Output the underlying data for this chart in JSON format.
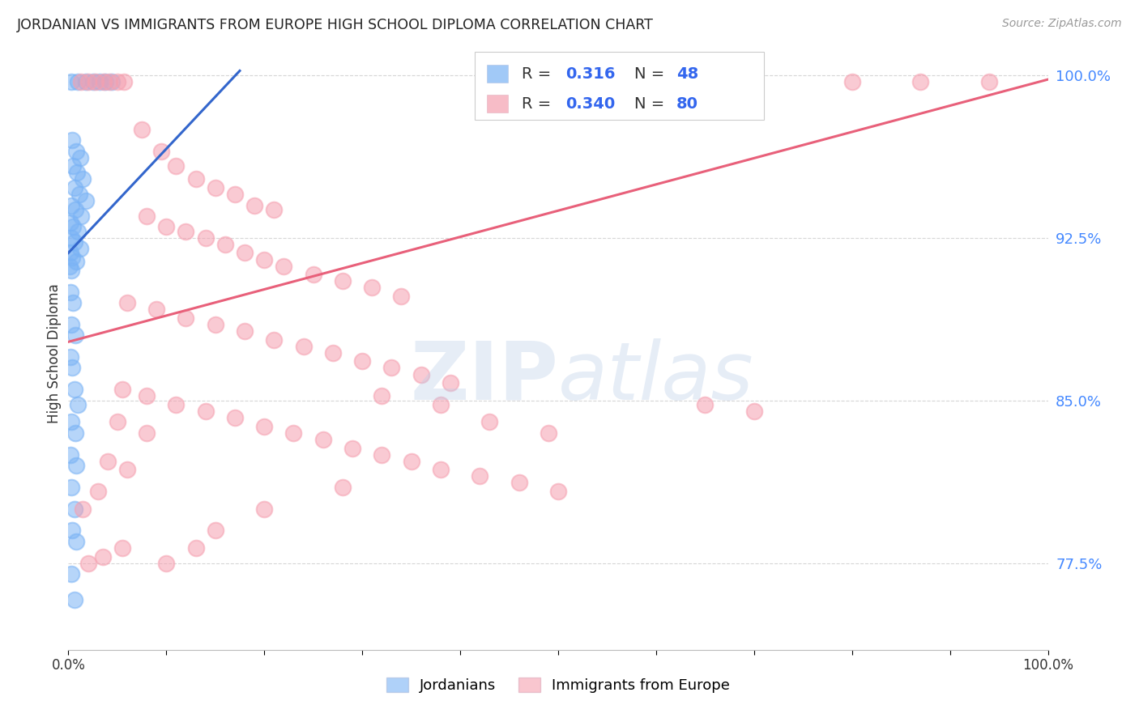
{
  "title": "JORDANIAN VS IMMIGRANTS FROM EUROPE HIGH SCHOOL DIPLOMA CORRELATION CHART",
  "source": "Source: ZipAtlas.com",
  "ylabel": "High School Diploma",
  "xlim": [
    0,
    1
  ],
  "ylim": [
    0.735,
    1.008
  ],
  "yticks": [
    0.775,
    0.85,
    0.925,
    1.0
  ],
  "ytick_labels": [
    "77.5%",
    "85.0%",
    "92.5%",
    "100.0%"
  ],
  "background_color": "#ffffff",
  "grid_color": "#cccccc",
  "jordanian_color": "#7ab3f5",
  "europe_color": "#f5a0b0",
  "jordanian_line_color": "#3366cc",
  "europe_line_color": "#e8607a",
  "watermark": "ZIPatlas",
  "jordanian_line": [
    [
      0.0,
      0.918
    ],
    [
      0.175,
      1.002
    ]
  ],
  "europe_line": [
    [
      0.0,
      0.877
    ],
    [
      1.0,
      0.998
    ]
  ],
  "jordanian_points": [
    [
      0.003,
      0.997
    ],
    [
      0.01,
      0.997
    ],
    [
      0.018,
      0.997
    ],
    [
      0.025,
      0.997
    ],
    [
      0.032,
      0.997
    ],
    [
      0.038,
      0.997
    ],
    [
      0.044,
      0.997
    ],
    [
      0.004,
      0.97
    ],
    [
      0.008,
      0.965
    ],
    [
      0.012,
      0.962
    ],
    [
      0.005,
      0.958
    ],
    [
      0.009,
      0.955
    ],
    [
      0.015,
      0.952
    ],
    [
      0.006,
      0.948
    ],
    [
      0.011,
      0.945
    ],
    [
      0.018,
      0.942
    ],
    [
      0.003,
      0.94
    ],
    [
      0.007,
      0.938
    ],
    [
      0.013,
      0.935
    ],
    [
      0.002,
      0.932
    ],
    [
      0.005,
      0.93
    ],
    [
      0.01,
      0.928
    ],
    [
      0.003,
      0.925
    ],
    [
      0.006,
      0.923
    ],
    [
      0.012,
      0.92
    ],
    [
      0.002,
      0.918
    ],
    [
      0.004,
      0.916
    ],
    [
      0.008,
      0.914
    ],
    [
      0.001,
      0.912
    ],
    [
      0.003,
      0.91
    ],
    [
      0.002,
      0.9
    ],
    [
      0.005,
      0.895
    ],
    [
      0.003,
      0.885
    ],
    [
      0.007,
      0.88
    ],
    [
      0.002,
      0.87
    ],
    [
      0.004,
      0.865
    ],
    [
      0.006,
      0.855
    ],
    [
      0.01,
      0.848
    ],
    [
      0.003,
      0.84
    ],
    [
      0.007,
      0.835
    ],
    [
      0.002,
      0.825
    ],
    [
      0.008,
      0.82
    ],
    [
      0.003,
      0.81
    ],
    [
      0.006,
      0.8
    ],
    [
      0.004,
      0.79
    ],
    [
      0.008,
      0.785
    ],
    [
      0.003,
      0.77
    ],
    [
      0.006,
      0.758
    ]
  ],
  "europe_points": [
    [
      0.013,
      0.997
    ],
    [
      0.02,
      0.997
    ],
    [
      0.028,
      0.997
    ],
    [
      0.036,
      0.997
    ],
    [
      0.042,
      0.997
    ],
    [
      0.05,
      0.997
    ],
    [
      0.057,
      0.997
    ],
    [
      0.8,
      0.997
    ],
    [
      0.87,
      0.997
    ],
    [
      0.94,
      0.997
    ],
    [
      0.075,
      0.975
    ],
    [
      0.095,
      0.965
    ],
    [
      0.11,
      0.958
    ],
    [
      0.13,
      0.952
    ],
    [
      0.15,
      0.948
    ],
    [
      0.17,
      0.945
    ],
    [
      0.19,
      0.94
    ],
    [
      0.21,
      0.938
    ],
    [
      0.08,
      0.935
    ],
    [
      0.1,
      0.93
    ],
    [
      0.12,
      0.928
    ],
    [
      0.14,
      0.925
    ],
    [
      0.16,
      0.922
    ],
    [
      0.18,
      0.918
    ],
    [
      0.2,
      0.915
    ],
    [
      0.22,
      0.912
    ],
    [
      0.25,
      0.908
    ],
    [
      0.28,
      0.905
    ],
    [
      0.31,
      0.902
    ],
    [
      0.34,
      0.898
    ],
    [
      0.06,
      0.895
    ],
    [
      0.09,
      0.892
    ],
    [
      0.12,
      0.888
    ],
    [
      0.15,
      0.885
    ],
    [
      0.18,
      0.882
    ],
    [
      0.21,
      0.878
    ],
    [
      0.24,
      0.875
    ],
    [
      0.27,
      0.872
    ],
    [
      0.3,
      0.868
    ],
    [
      0.33,
      0.865
    ],
    [
      0.36,
      0.862
    ],
    [
      0.39,
      0.858
    ],
    [
      0.055,
      0.855
    ],
    [
      0.08,
      0.852
    ],
    [
      0.11,
      0.848
    ],
    [
      0.14,
      0.845
    ],
    [
      0.17,
      0.842
    ],
    [
      0.2,
      0.838
    ],
    [
      0.23,
      0.835
    ],
    [
      0.26,
      0.832
    ],
    [
      0.29,
      0.828
    ],
    [
      0.32,
      0.825
    ],
    [
      0.35,
      0.822
    ],
    [
      0.38,
      0.818
    ],
    [
      0.42,
      0.815
    ],
    [
      0.46,
      0.812
    ],
    [
      0.5,
      0.808
    ],
    [
      0.05,
      0.84
    ],
    [
      0.08,
      0.835
    ],
    [
      0.65,
      0.848
    ],
    [
      0.7,
      0.845
    ],
    [
      0.04,
      0.822
    ],
    [
      0.06,
      0.818
    ],
    [
      0.43,
      0.84
    ],
    [
      0.49,
      0.835
    ],
    [
      0.38,
      0.848
    ],
    [
      0.32,
      0.852
    ],
    [
      0.03,
      0.808
    ],
    [
      0.015,
      0.8
    ],
    [
      0.035,
      0.778
    ],
    [
      0.02,
      0.775
    ],
    [
      0.055,
      0.782
    ],
    [
      0.28,
      0.81
    ],
    [
      0.2,
      0.8
    ],
    [
      0.15,
      0.79
    ],
    [
      0.13,
      0.782
    ],
    [
      0.1,
      0.775
    ]
  ]
}
